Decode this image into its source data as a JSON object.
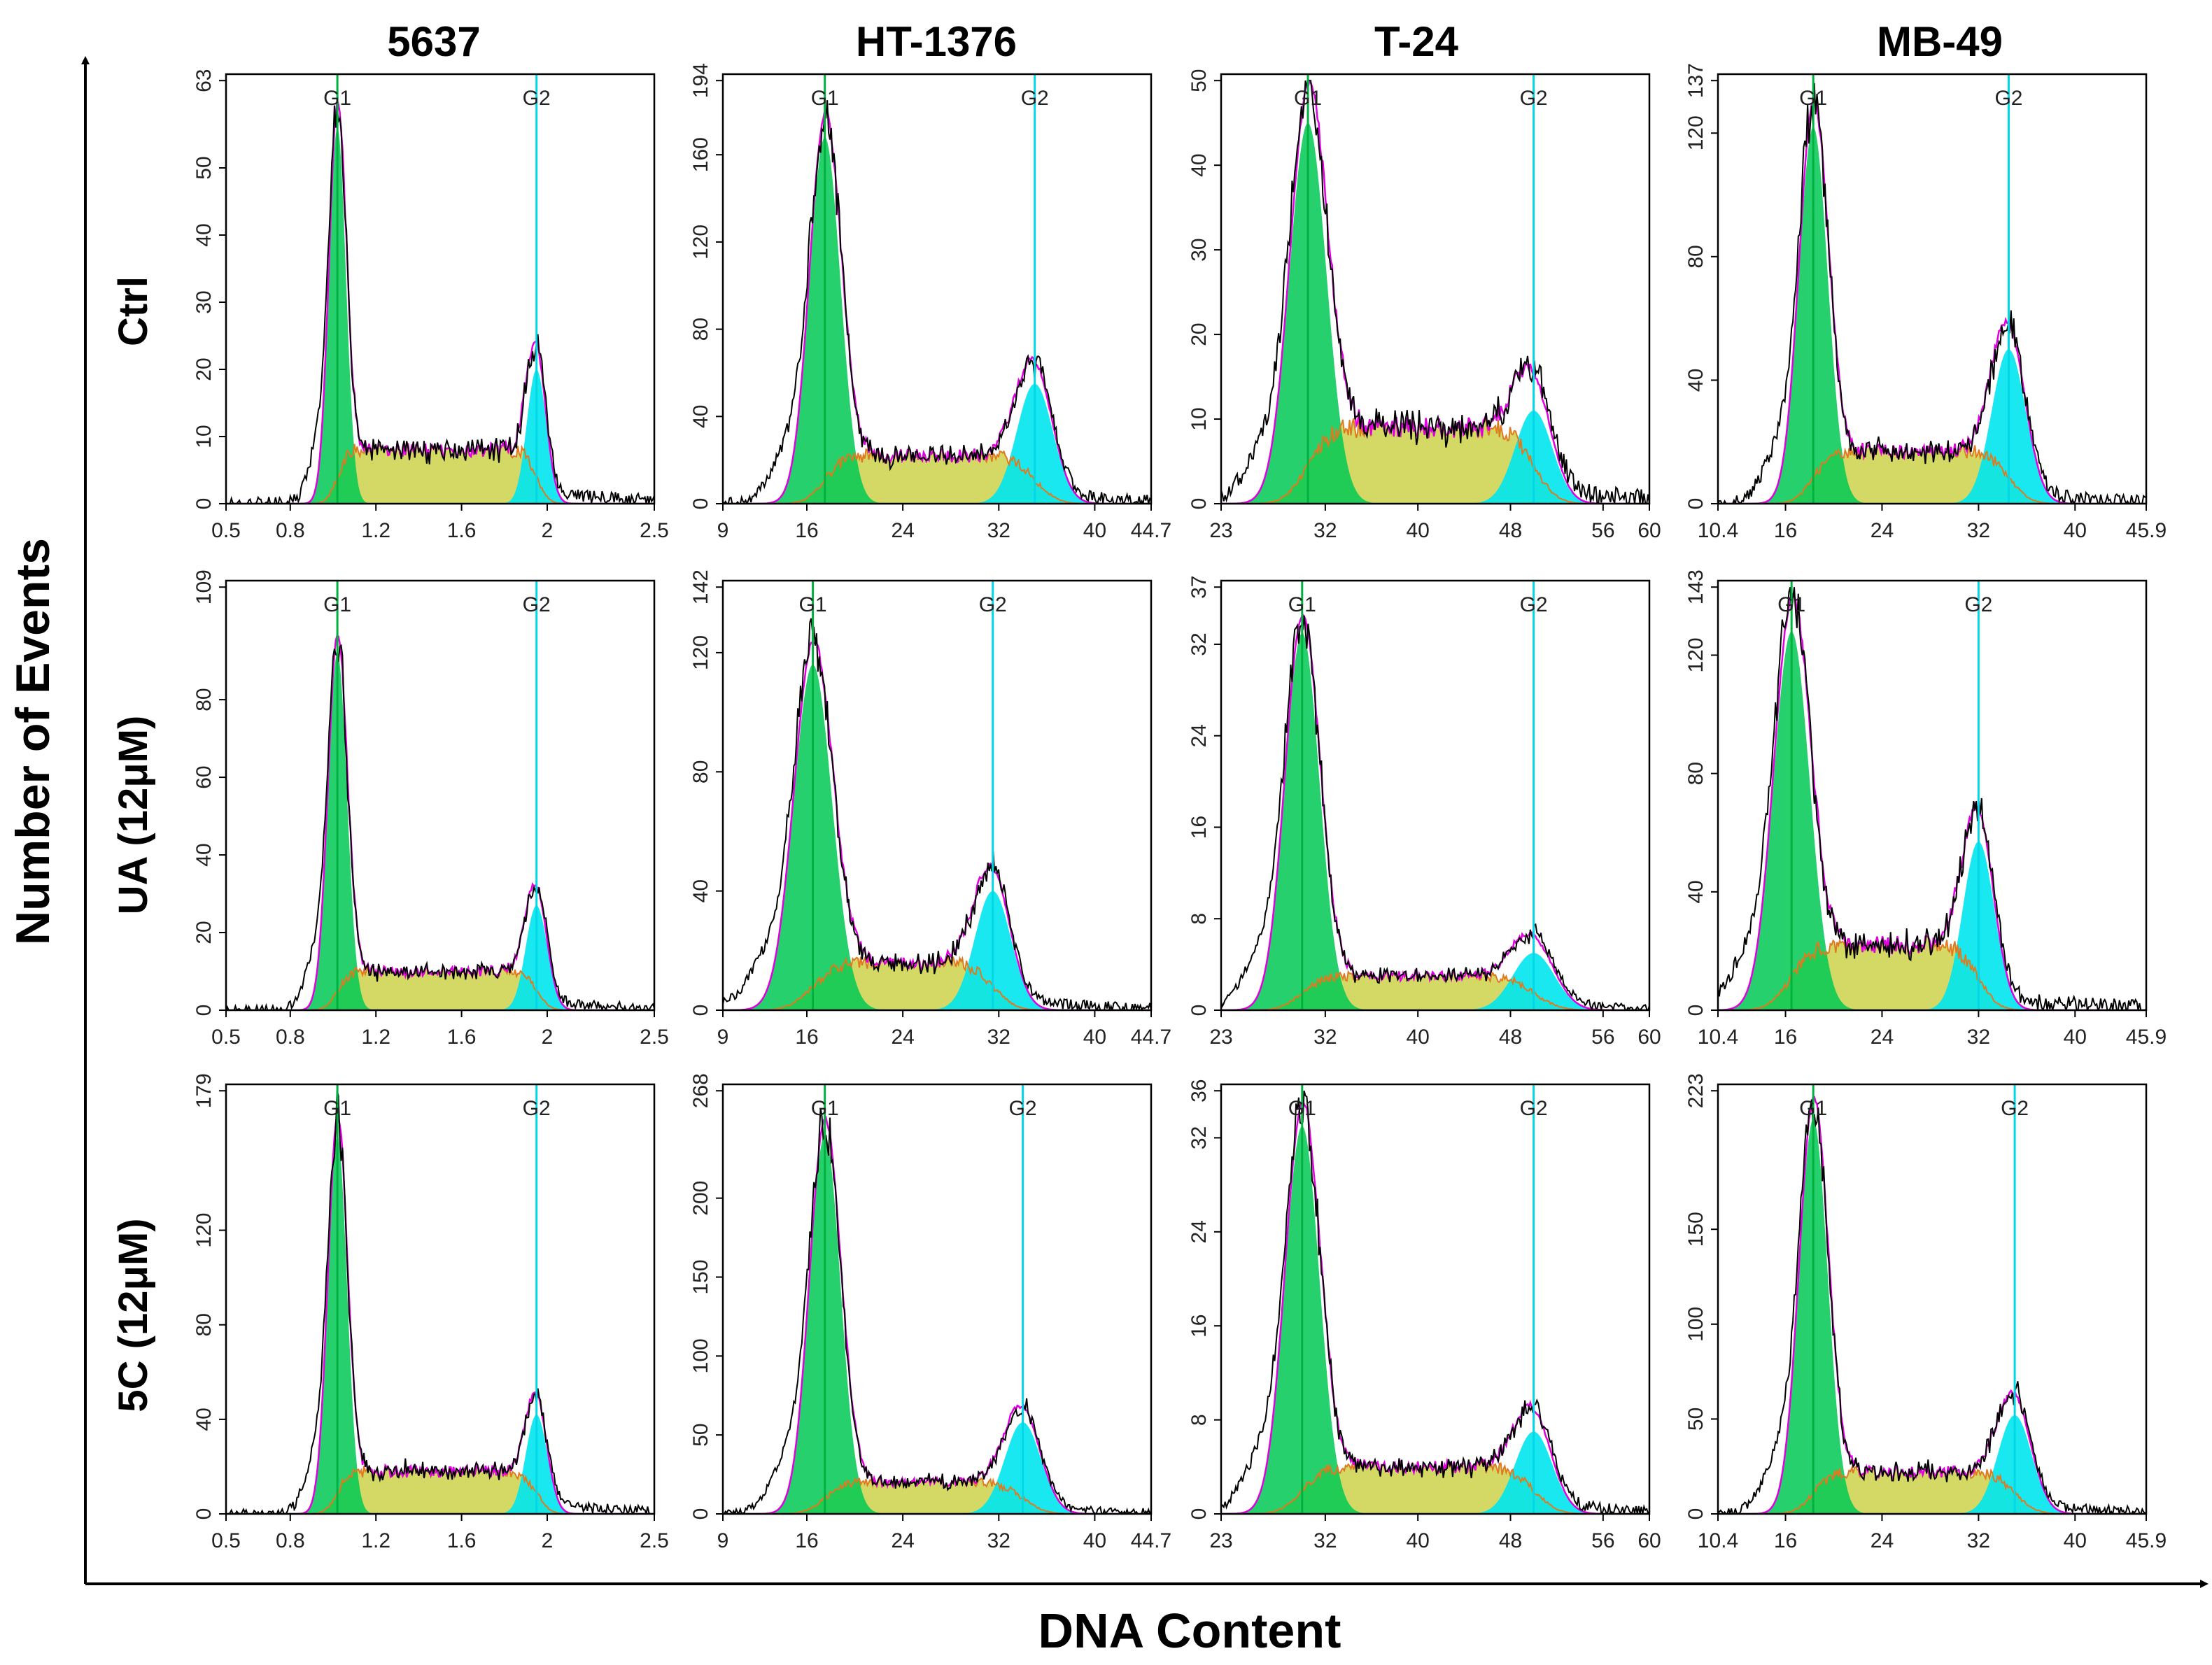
{
  "figure": {
    "y_axis_label": "Number of Events",
    "x_axis_label": "DNA Content",
    "column_titles": [
      "5637",
      "HT-1376",
      "T-24",
      "MB-49"
    ],
    "row_labels": [
      "Ctrl",
      "UA (12μM)",
      "5C (12μM)"
    ],
    "marker_labels": {
      "g1": "G1",
      "g2": "G2"
    }
  },
  "colors": {
    "g1_fill": "#00c853",
    "s_fill": "#cdd24a",
    "g2_fill": "#00e5ee",
    "fit_line": "#e000e0",
    "s_edge": "#e07a1e",
    "data_line": "#000000",
    "g1_marker": "#00b140",
    "g2_marker": "#00d8e8"
  },
  "chart_data": [
    {
      "type": "histogram",
      "row": "Ctrl",
      "column": "5637",
      "xlim": [
        0.5,
        2.5
      ],
      "xticks": [
        0.5,
        0.8,
        1.2,
        1.6,
        2,
        2.5
      ],
      "ylim": [
        0,
        63
      ],
      "yticks": [
        0,
        10,
        20,
        30,
        40,
        50,
        63
      ],
      "g1": {
        "x": 1.02,
        "peak": 56,
        "width": 0.04
      },
      "g2": {
        "x": 1.95,
        "peak": 20,
        "width": 0.045
      },
      "s_level": 8
    },
    {
      "type": "histogram",
      "row": "Ctrl",
      "column": "HT-1376",
      "xlim": [
        9,
        44.7
      ],
      "xticks": [
        9,
        16,
        24,
        32,
        40,
        44.7
      ],
      "ylim": [
        0,
        194
      ],
      "yticks": [
        0,
        40,
        80,
        120,
        160,
        194
      ],
      "g1": {
        "x": 17.5,
        "peak": 168,
        "width": 1.3
      },
      "g2": {
        "x": 35,
        "peak": 55,
        "width": 1.5
      },
      "s_level": 22
    },
    {
      "type": "histogram",
      "row": "Ctrl",
      "column": "T-24",
      "xlim": [
        23,
        60
      ],
      "xticks": [
        23,
        32,
        40,
        48,
        56,
        60
      ],
      "ylim": [
        0,
        50
      ],
      "yticks": [
        0,
        10,
        20,
        30,
        40,
        50
      ],
      "g1": {
        "x": 30.5,
        "peak": 45,
        "width": 1.6
      },
      "g2": {
        "x": 50,
        "peak": 11,
        "width": 1.6
      },
      "s_level": 9
    },
    {
      "type": "histogram",
      "row": "Ctrl",
      "column": "MB-49",
      "xlim": [
        10.4,
        45.9
      ],
      "xticks": [
        10.4,
        16,
        24,
        32,
        40,
        45.9
      ],
      "ylim": [
        0,
        137
      ],
      "yticks": [
        0,
        40,
        80,
        120,
        137
      ],
      "g1": {
        "x": 18.3,
        "peak": 122,
        "width": 1.2
      },
      "g2": {
        "x": 34.5,
        "peak": 50,
        "width": 1.4
      },
      "s_level": 17
    },
    {
      "type": "histogram",
      "row": "UA (12μM)",
      "column": "5637",
      "xlim": [
        0.5,
        2.5
      ],
      "xticks": [
        0.5,
        0.8,
        1.2,
        1.6,
        2,
        2.5
      ],
      "ylim": [
        0,
        109
      ],
      "yticks": [
        0,
        20,
        40,
        60,
        80,
        109
      ],
      "g1": {
        "x": 1.02,
        "peak": 92,
        "width": 0.045
      },
      "g2": {
        "x": 1.95,
        "peak": 27,
        "width": 0.05
      },
      "s_level": 10
    },
    {
      "type": "histogram",
      "row": "UA (12μM)",
      "column": "HT-1376",
      "xlim": [
        9,
        44.7
      ],
      "xticks": [
        9,
        16,
        24,
        32,
        40,
        44.7
      ],
      "ylim": [
        0,
        142
      ],
      "yticks": [
        0,
        40,
        80,
        120,
        142
      ],
      "g1": {
        "x": 16.5,
        "peak": 116,
        "width": 1.6
      },
      "g2": {
        "x": 31.5,
        "peak": 40,
        "width": 1.5
      },
      "s_level": 16
    },
    {
      "type": "histogram",
      "row": "UA (12μM)",
      "column": "T-24",
      "xlim": [
        23,
        60
      ],
      "xticks": [
        23,
        32,
        40,
        48,
        56,
        60
      ],
      "ylim": [
        0,
        37
      ],
      "yticks": [
        0,
        8,
        16,
        24,
        32,
        37
      ],
      "g1": {
        "x": 30,
        "peak": 33,
        "width": 1.5
      },
      "g2": {
        "x": 50,
        "peak": 5,
        "width": 1.8
      },
      "s_level": 3
    },
    {
      "type": "histogram",
      "row": "UA (12μM)",
      "column": "MB-49",
      "xlim": [
        10.4,
        45.9
      ],
      "xticks": [
        10.4,
        16,
        24,
        32,
        40,
        45.9
      ],
      "ylim": [
        0,
        143
      ],
      "yticks": [
        0,
        40,
        80,
        120,
        143
      ],
      "g1": {
        "x": 16.5,
        "peak": 128,
        "width": 1.5
      },
      "g2": {
        "x": 32,
        "peak": 57,
        "width": 1.3
      },
      "s_level": 22
    },
    {
      "type": "histogram",
      "row": "5C (12μM)",
      "column": "5637",
      "xlim": [
        0.5,
        2.5
      ],
      "xticks": [
        0.5,
        0.8,
        1.2,
        1.6,
        2,
        2.5
      ],
      "ylim": [
        0,
        179
      ],
      "yticks": [
        0,
        40,
        80,
        120,
        179
      ],
      "g1": {
        "x": 1.02,
        "peak": 160,
        "width": 0.045
      },
      "g2": {
        "x": 1.95,
        "peak": 42,
        "width": 0.05
      },
      "s_level": 18
    },
    {
      "type": "histogram",
      "row": "5C (12μM)",
      "column": "HT-1376",
      "xlim": [
        9,
        44.7
      ],
      "xticks": [
        9,
        16,
        24,
        32,
        40,
        44.7
      ],
      "ylim": [
        0,
        268
      ],
      "yticks": [
        0,
        50,
        100,
        150,
        200,
        268
      ],
      "g1": {
        "x": 17.5,
        "peak": 240,
        "width": 1.3
      },
      "g2": {
        "x": 34,
        "peak": 58,
        "width": 1.5
      },
      "s_level": 20
    },
    {
      "type": "histogram",
      "row": "5C (12μM)",
      "column": "T-24",
      "xlim": [
        23,
        60
      ],
      "xticks": [
        23,
        32,
        40,
        48,
        56,
        60
      ],
      "ylim": [
        0,
        36
      ],
      "yticks": [
        0,
        8,
        16,
        24,
        32,
        36
      ],
      "g1": {
        "x": 30,
        "peak": 33,
        "width": 1.5
      },
      "g2": {
        "x": 50,
        "peak": 7,
        "width": 1.6
      },
      "s_level": 4
    },
    {
      "type": "histogram",
      "row": "5C (12μM)",
      "column": "MB-49",
      "xlim": [
        10.4,
        45.9
      ],
      "xticks": [
        10.4,
        16,
        24,
        32,
        40,
        45.9
      ],
      "ylim": [
        0,
        223
      ],
      "yticks": [
        0,
        50,
        100,
        150,
        223
      ],
      "g1": {
        "x": 18.3,
        "peak": 208,
        "width": 1.2
      },
      "g2": {
        "x": 35,
        "peak": 52,
        "width": 1.4
      },
      "s_level": 22
    }
  ]
}
